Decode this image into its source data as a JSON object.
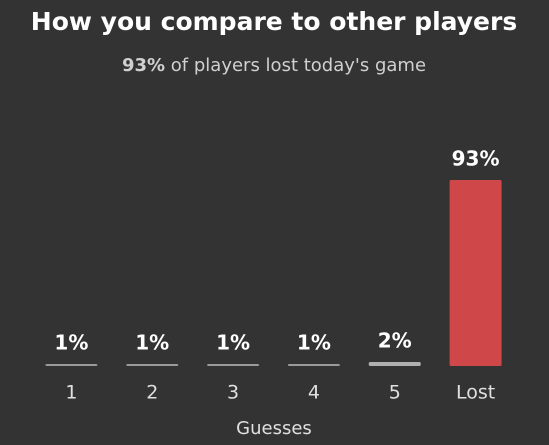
{
  "chart_data": {
    "type": "bar",
    "title": "How you compare to other players",
    "subtitle_emphasis": "93%",
    "subtitle": "of players lost today's game",
    "categories": [
      "1",
      "2",
      "3",
      "4",
      "5",
      "Lost"
    ],
    "values": [
      1,
      1,
      1,
      1,
      2,
      93
    ],
    "value_labels": [
      "1%",
      "1%",
      "1%",
      "1%",
      "2%",
      "93%"
    ],
    "colors": [
      "#9a9a9a",
      "#9a9a9a",
      "#9a9a9a",
      "#9a9a9a",
      "#b0b0b0",
      "#d0474a"
    ],
    "xlabel": "Guesses"
  }
}
